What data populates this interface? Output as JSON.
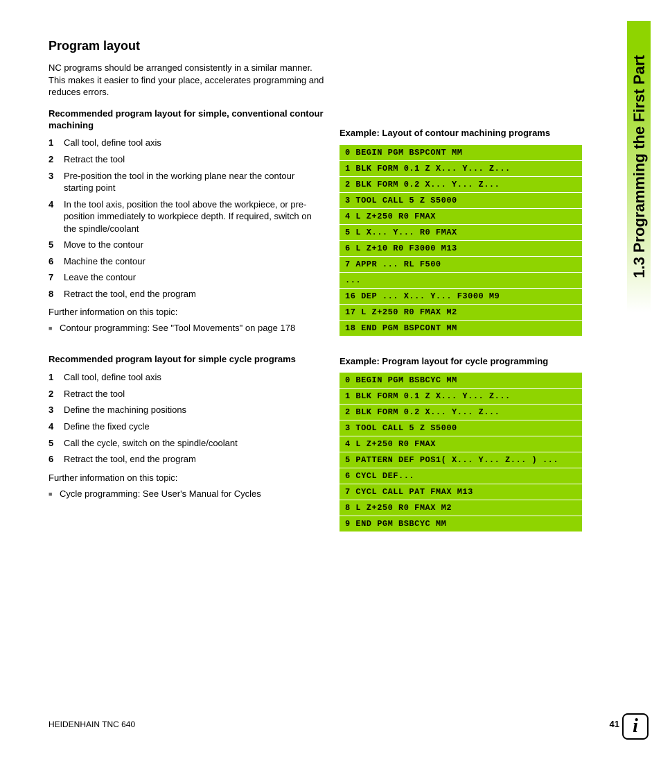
{
  "sideTab": "1.3 Programming the First Part",
  "title": "Program layout",
  "intro": "NC programs should be arranged consistently in a similar manner. This makes it easier to find your place, accelerates programming and reduces errors.",
  "section1": {
    "heading": "Recommended program layout for simple, conventional contour machining",
    "steps": [
      "Call tool, define tool axis",
      "Retract the tool",
      "Pre-position the tool in the working plane near the contour starting point",
      "In the tool axis, position the tool above the workpiece, or pre-position immediately to workpiece depth. If required, switch on the spindle/coolant",
      "Move to the contour",
      "Machine the contour",
      "Leave the contour",
      "Retract the tool, end the program"
    ],
    "further": "Further information on this topic:",
    "bullet": "Contour programming: See \"Tool Movements\" on page 178"
  },
  "section2": {
    "heading": "Recommended program layout for simple cycle programs",
    "steps": [
      "Call tool, define tool axis",
      "Retract the tool",
      "Define the machining positions",
      "Define the fixed cycle",
      "Call the cycle, switch on the spindle/coolant",
      "Retract the tool, end the program"
    ],
    "further": "Further information on this topic:",
    "bullet": "Cycle programming: See User's Manual for Cycles"
  },
  "example1": {
    "heading": "Example: Layout of contour machining programs",
    "lines": [
      "0 BEGIN PGM BSPCONT MM",
      "1 BLK FORM 0.1 Z X... Y... Z...",
      "2 BLK FORM 0.2 X... Y... Z...",
      "3 TOOL CALL 5 Z S5000",
      "4 L Z+250 R0 FMAX",
      "5 L X... Y... R0 FMAX",
      "6 L Z+10 R0 F3000 M13",
      "7 APPR ... RL F500",
      "...",
      "16 DEP ... X... Y... F3000 M9",
      "17 L Z+250 R0 FMAX M2",
      "18 END PGM BSPCONT MM"
    ]
  },
  "example2": {
    "heading": "Example: Program layout for cycle programming",
    "lines": [
      "0 BEGIN PGM BSBCYC MM",
      "1 BLK FORM 0.1 Z X... Y... Z...",
      "2 BLK FORM 0.2 X... Y... Z...",
      "3 TOOL CALL 5 Z S5000",
      "4 L Z+250 R0 FMAX",
      "5 PATTERN DEF POS1( X... Y... Z... ) ...",
      "6 CYCL DEF...",
      "7 CYCL CALL PAT FMAX M13",
      "8 L Z+250 R0 FMAX M2",
      "9 END PGM BSBCYC MM"
    ]
  },
  "footer": {
    "left": "HEIDENHAIN TNC 640",
    "page": "41"
  },
  "colors": {
    "accent": "#8fd400",
    "text": "#000000",
    "bg": "#ffffff"
  }
}
